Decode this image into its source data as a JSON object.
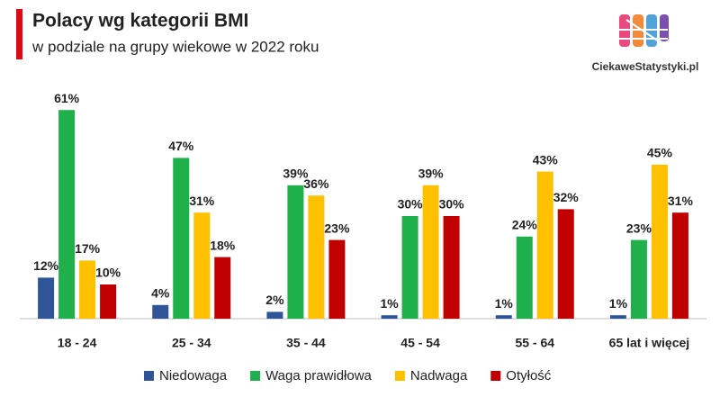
{
  "chart_data": {
    "type": "bar",
    "title": "Polacy wg kategorii BMI",
    "subtitle": "w podziale na grupy wiekowe w 2022 roku",
    "source": "CiekaweStatystyki.pl",
    "categories": [
      "18 - 24",
      "25 - 34",
      "35 - 44",
      "45 - 54",
      "55 - 64",
      "65 lat i więcej"
    ],
    "series": [
      {
        "name": "Niedowaga",
        "color": "#2f5597",
        "values": [
          12,
          4,
          2,
          1,
          1,
          1
        ],
        "value_labels": [
          "12%",
          "4%",
          "2%",
          "1%",
          "1%",
          "1%"
        ]
      },
      {
        "name": "Waga prawidłowa",
        "color": "#1fb04b",
        "values": [
          61,
          47,
          39,
          30,
          24,
          23
        ],
        "value_labels": [
          "61%",
          "47%",
          "39%",
          "30%",
          "24%",
          "23%"
        ]
      },
      {
        "name": "Nadwaga",
        "color": "#ffc000",
        "values": [
          17,
          31,
          36,
          39,
          43,
          45
        ],
        "value_labels": [
          "17%",
          "31%",
          "36%",
          "39%",
          "43%",
          "45%"
        ]
      },
      {
        "name": "Otyłość",
        "color": "#c00000",
        "values": [
          10,
          18,
          23,
          30,
          32,
          31
        ],
        "value_labels": [
          "10%",
          "18%",
          "23%",
          "30%",
          "32%",
          "31%"
        ]
      }
    ],
    "ylim": [
      0,
      70
    ],
    "legend": "bottom"
  }
}
